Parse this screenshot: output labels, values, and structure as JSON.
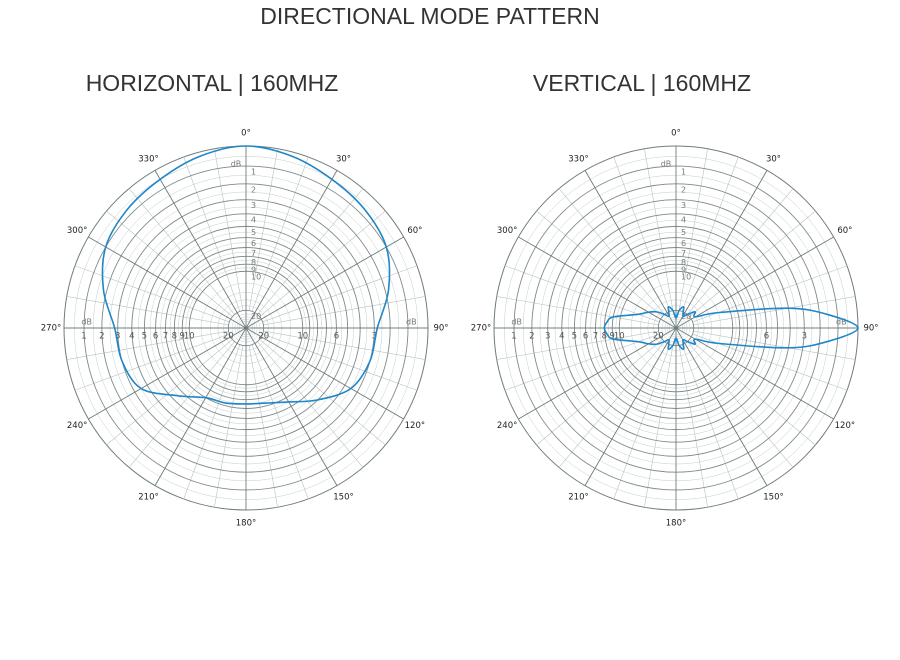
{
  "title": "DIRECTIONAL MODE PATTERN",
  "chart_data": [
    {
      "type": "polar",
      "title": "HORIZONTAL | 160MHZ",
      "r_unit": "dB",
      "rscale": "log",
      "rticks": [
        1,
        2,
        3,
        4,
        5,
        6,
        7,
        8,
        9,
        10,
        20
      ],
      "rticks_right": [
        3,
        6,
        10,
        20
      ],
      "thetaticks": [
        {
          "value": 0,
          "label": "0°"
        },
        {
          "value": 30,
          "label": "30°"
        },
        {
          "value": 60,
          "label": "60°"
        },
        {
          "value": 90,
          "label": "90°"
        },
        {
          "value": 120,
          "label": "120°"
        },
        {
          "value": 150,
          "label": "150°"
        },
        {
          "value": 180,
          "label": "180°"
        },
        {
          "value": 210,
          "label": "210°"
        },
        {
          "value": 240,
          "label": "240°"
        },
        {
          "value": 270,
          "label": "270°"
        },
        {
          "value": 300,
          "label": "300°"
        },
        {
          "value": 330,
          "label": "330°"
        }
      ],
      "series": [
        {
          "color": "#1f86c8",
          "theta": [
            0,
            15,
            30,
            45,
            60,
            75,
            90,
            105,
            120,
            135,
            150,
            165,
            180,
            195,
            210,
            225,
            240,
            255,
            270,
            285,
            300,
            315,
            330,
            345
          ],
          "r": [
            0,
            0.2,
            0.5,
            0.7,
            1,
            1.8,
            2.8,
            3,
            3.5,
            5,
            6.5,
            7.3,
            7.5,
            7.3,
            7,
            5.5,
            3.5,
            3,
            2.8,
            1.8,
            1,
            0.7,
            0.5,
            0.2
          ]
        }
      ]
    },
    {
      "type": "polar",
      "title": "VERTICAL | 160MHZ",
      "r_unit": "dB",
      "rscale": "log",
      "rticks": [
        1,
        2,
        3,
        4,
        5,
        6,
        7,
        8,
        9,
        10,
        20
      ],
      "rticks_right": [
        3,
        6
      ],
      "thetaticks": [
        {
          "value": 0,
          "label": "0°"
        },
        {
          "value": 30,
          "label": "30°"
        },
        {
          "value": 60,
          "label": "60°"
        },
        {
          "value": 90,
          "label": "90°"
        },
        {
          "value": 120,
          "label": "120°"
        },
        {
          "value": 150,
          "label": "150°"
        },
        {
          "value": 180,
          "label": "180°"
        },
        {
          "value": 210,
          "label": "210°"
        },
        {
          "value": 240,
          "label": "240°"
        },
        {
          "value": 270,
          "label": "270°"
        },
        {
          "value": 300,
          "label": "300°"
        },
        {
          "value": 330,
          "label": "330°"
        }
      ],
      "series": [
        {
          "color": "#1f86c8",
          "theta": [
            0,
            10,
            20,
            30,
            40,
            50,
            60,
            70,
            80,
            85,
            90,
            95,
            100,
            110,
            120,
            130,
            140,
            150,
            160,
            170,
            180,
            190,
            200,
            210,
            220,
            230,
            240,
            250,
            260,
            265,
            270,
            275,
            280,
            290,
            300,
            310,
            320,
            330,
            340,
            350
          ],
          "r": [
            25,
            20,
            18,
            22,
            20,
            17,
            18,
            12,
            4,
            1.5,
            0,
            1.5,
            4,
            12,
            18,
            17,
            20,
            22,
            18,
            20,
            25,
            20,
            18,
            22,
            20,
            17,
            15,
            13,
            9,
            8.3,
            8,
            8.3,
            9,
            13,
            15,
            17,
            20,
            22,
            18,
            20
          ]
        }
      ]
    }
  ]
}
